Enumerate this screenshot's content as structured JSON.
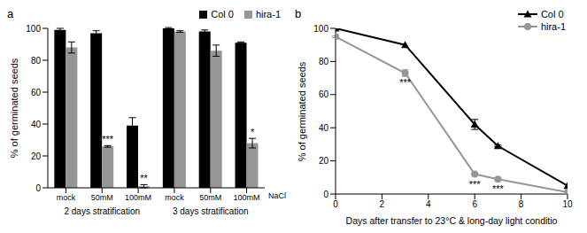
{
  "chart_data": [
    {
      "panel": "a",
      "type": "bar",
      "categories": [
        "mock",
        "50mM",
        "100mM",
        "mock",
        "50mM",
        "100mM"
      ],
      "group_labels": [
        "2 days stratification",
        "3 days stratification"
      ],
      "x_label": "NaCl",
      "y_label": "% of germinated seeds",
      "ylim": [
        0,
        100
      ],
      "yticks": [
        0,
        20,
        40,
        60,
        80,
        100
      ],
      "grid": false,
      "legend": "top right",
      "series": [
        {
          "name": "Col 0",
          "color": "#000000",
          "values": [
            99,
            97,
            39,
            100,
            98,
            91
          ],
          "errors": [
            1,
            1.5,
            5,
            0.5,
            1,
            0.5
          ]
        },
        {
          "name": "hira-1",
          "color": "#969696",
          "values": [
            88,
            26,
            1,
            98,
            86,
            28
          ],
          "errors": [
            3.5,
            0.5,
            1,
            0.5,
            3.5,
            3
          ],
          "significance": [
            null,
            "***",
            "**",
            null,
            null,
            "*"
          ]
        }
      ]
    },
    {
      "panel": "b",
      "type": "line",
      "x": [
        0,
        3,
        6,
        7,
        10
      ],
      "x_label": "Days after transfer to 23°C & long-day light conditio",
      "y_label": "% of germinated seeds",
      "xlim": [
        0,
        10
      ],
      "xticks": [
        0,
        2,
        4,
        6,
        8,
        10
      ],
      "ylim": [
        0,
        100
      ],
      "yticks": [
        0,
        20,
        40,
        60,
        80,
        100
      ],
      "grid": false,
      "legend": "top right",
      "series": [
        {
          "name": "Col 0",
          "color": "#000000",
          "marker": "triangle",
          "values": [
            100,
            90,
            42,
            29,
            5
          ],
          "errors": [
            0,
            0,
            3,
            0.5,
            0
          ]
        },
        {
          "name": "hira-1",
          "color": "#969696",
          "marker": "circle",
          "values": [
            95,
            73,
            12,
            9,
            1
          ],
          "errors": [
            0.5,
            2,
            0.5,
            0.5,
            0
          ],
          "significance": [
            null,
            "***",
            "***",
            "***",
            null
          ]
        }
      ]
    }
  ]
}
